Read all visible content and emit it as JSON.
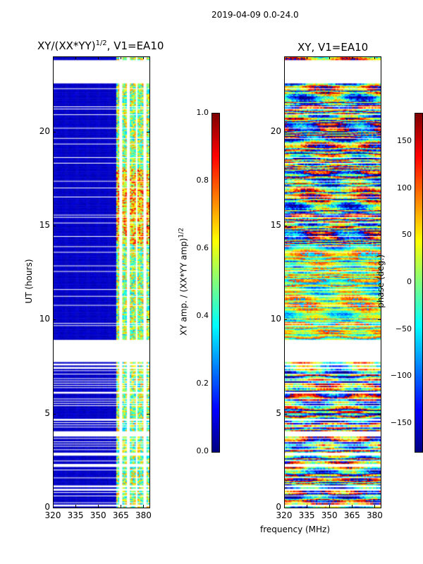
{
  "chart_data": [
    {
      "type": "heatmap",
      "suptitle": "2019-04-09 0.0-24.0",
      "title": "XY/(XX*YY)^1/2, V1=EA10",
      "title_base": "XY/(XX*YY)",
      "title_sup": "1/2",
      "title_tail": ", V1=EA10",
      "xlabel": "frequency (MHz)",
      "ylabel": "UT (hours)",
      "xlim": [
        320,
        384
      ],
      "ylim": [
        0,
        24
      ],
      "xticks": [
        "320",
        "335",
        "350",
        "365",
        "380"
      ],
      "xtick_values": [
        320,
        335,
        350,
        365,
        380
      ],
      "yticks": [
        "0",
        "5",
        "10",
        "15",
        "20"
      ],
      "ytick_values": [
        0,
        5,
        10,
        15,
        20
      ],
      "colormap": "jet",
      "colorbar": {
        "label": "XY amp. / (XX*YY amp)",
        "label_sup": "1/2",
        "range": [
          0,
          1
        ],
        "ticks": [
          "0.0",
          "0.2",
          "0.4",
          "0.6",
          "0.8",
          "1.0"
        ],
        "tick_values": [
          0,
          0.2,
          0.4,
          0.6,
          0.8,
          1.0
        ]
      },
      "data_time_ranges_hours": [
        [
          0,
          7.7
        ],
        [
          8.9,
          22.5
        ],
        [
          23.8,
          24
        ]
      ],
      "description_values": {
        "low_band_MHz": [
          320,
          362
        ],
        "low_band_value": 0.05,
        "high_band_MHz": [
          362,
          384
        ],
        "high_band_value_range": [
          0.3,
          0.9
        ]
      }
    },
    {
      "type": "heatmap",
      "title": "XY, V1=EA10",
      "xlim": [
        320,
        384
      ],
      "ylim": [
        0,
        24
      ],
      "xticks": [
        "320",
        "335",
        "350",
        "365",
        "380"
      ],
      "xtick_values": [
        320,
        335,
        350,
        365,
        380
      ],
      "yticks": [
        "0",
        "5",
        "10",
        "15",
        "20"
      ],
      "ytick_values": [
        0,
        5,
        10,
        15,
        20
      ],
      "colormap": "jet",
      "colorbar": {
        "label": "phase (deg.)",
        "range": [
          -180,
          180
        ],
        "ticks": [
          "150",
          "100",
          "50",
          "0",
          "−50",
          "−100",
          "−150"
        ],
        "tick_values": [
          150,
          100,
          50,
          0,
          -50,
          -100,
          -150
        ]
      },
      "data_time_ranges_hours": [
        [
          0,
          7.7
        ],
        [
          8.9,
          22.5
        ],
        [
          23.8,
          24
        ]
      ]
    }
  ]
}
